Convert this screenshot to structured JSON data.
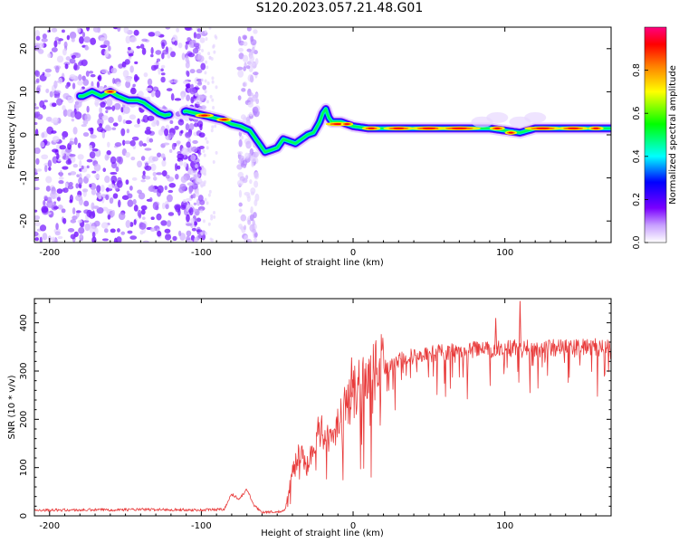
{
  "title": "S120.2023.057.21.48.G01",
  "chart_data": [
    {
      "type": "heatmap",
      "title": "S120.2023.057.21.48.G01",
      "xlabel": "Height of straight line (km)",
      "ylabel": "Frequency (Hz)",
      "xlim": [
        -210,
        170
      ],
      "ylim": [
        -25,
        25
      ],
      "x_ticks": [
        -200,
        -100,
        0,
        100
      ],
      "y_ticks": [
        -20,
        -10,
        0,
        10,
        20
      ],
      "colorbar": {
        "label": "Normalized spectral amplitude",
        "range": [
          0,
          1
        ],
        "ticks": [
          0.0,
          0.2,
          0.4,
          0.6,
          0.8
        ],
        "tick_labels": [
          "0.0",
          "0.2",
          "0.4",
          "0.6",
          "0.8"
        ],
        "colors": [
          "#ffffff",
          "#7a00ff",
          "#0000ff",
          "#00ffff",
          "#00ff00",
          "#ffff00",
          "#ff7f00",
          "#ff0000",
          "#ff0080"
        ]
      },
      "ridge": {
        "x": [
          -178,
          -172,
          -166,
          -160,
          -155,
          -148,
          -142,
          -138,
          -132,
          -128,
          -124,
          -110,
          -104,
          -98,
          -92,
          -86,
          -80,
          -74,
          -68,
          -62,
          -58,
          -54,
          -50,
          -46,
          -42,
          -38,
          -34,
          -30,
          -26,
          -22,
          -20,
          -18,
          -16,
          -14,
          -12,
          -8,
          -4,
          0,
          10,
          20,
          40,
          60,
          80,
          90,
          100,
          110,
          120,
          140,
          160,
          170
        ],
        "y": [
          9,
          10,
          9,
          10,
          9,
          8,
          8,
          7.5,
          6,
          5,
          4.5,
          5.5,
          5,
          4.5,
          4,
          3.5,
          2.5,
          2,
          1,
          -2,
          -4,
          -3.5,
          -3,
          -1,
          -1.5,
          -2,
          -1,
          0,
          0.5,
          3,
          5,
          6,
          4,
          3,
          3,
          3,
          2.5,
          2,
          1.5,
          1.5,
          1.5,
          1.5,
          1.5,
          1.5,
          1,
          0.5,
          1.5,
          1.5,
          1.5,
          1.5
        ]
      }
    },
    {
      "type": "line",
      "xlabel": "Height of straight line (km)",
      "ylabel": "SNR (10 * v/v)",
      "xlim": [
        -210,
        170
      ],
      "ylim": [
        0,
        450
      ],
      "x_ticks": [
        -200,
        -100,
        0,
        100
      ],
      "y_ticks": [
        0,
        100,
        200,
        300,
        400
      ],
      "color": "#e83a3a",
      "envelope": {
        "x": [
          -210,
          -180,
          -150,
          -120,
          -100,
          -85,
          -80,
          -75,
          -70,
          -65,
          -60,
          -50,
          -45,
          -40,
          -35,
          -30,
          -25,
          -20,
          -15,
          -10,
          -5,
          0,
          10,
          20,
          30,
          40,
          50,
          60,
          70,
          80,
          100,
          110,
          120,
          140,
          160,
          170
        ],
        "y": [
          12,
          12,
          13,
          13,
          12,
          14,
          45,
          35,
          55,
          20,
          8,
          8,
          10,
          90,
          130,
          100,
          170,
          180,
          150,
          200,
          230,
          250,
          290,
          310,
          320,
          330,
          335,
          340,
          340,
          345,
          345,
          350,
          345,
          350,
          350,
          355
        ]
      },
      "peaks": [
        {
          "x": 110,
          "y": 445
        },
        {
          "x": -1,
          "y": 328
        },
        {
          "x": 94,
          "y": 410
        }
      ]
    }
  ]
}
